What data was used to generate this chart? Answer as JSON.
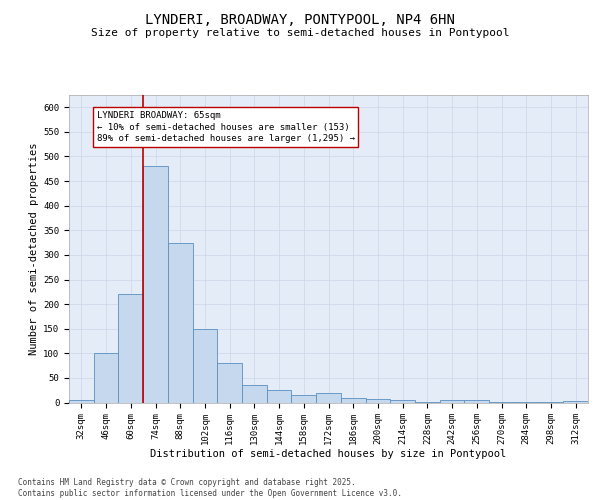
{
  "title_line1": "LYNDERI, BROADWAY, PONTYPOOL, NP4 6HN",
  "title_line2": "Size of property relative to semi-detached houses in Pontypool",
  "xlabel": "Distribution of semi-detached houses by size in Pontypool",
  "ylabel": "Number of semi-detached properties",
  "bins": [
    "32sqm",
    "46sqm",
    "60sqm",
    "74sqm",
    "88sqm",
    "102sqm",
    "116sqm",
    "130sqm",
    "144sqm",
    "158sqm",
    "172sqm",
    "186sqm",
    "200sqm",
    "214sqm",
    "228sqm",
    "242sqm",
    "256sqm",
    "270sqm",
    "284sqm",
    "298sqm",
    "312sqm"
  ],
  "bar_values": [
    5,
    100,
    220,
    480,
    325,
    150,
    80,
    35,
    25,
    15,
    20,
    10,
    8,
    5,
    2,
    5,
    5,
    2,
    2,
    2,
    3
  ],
  "bar_color": "#c5d8ed",
  "bar_edge_color": "#5a8fc0",
  "grid_color": "#ccd6e8",
  "background_color": "#e4ecf7",
  "vline_color": "#bb0000",
  "vline_x": 2.5,
  "annotation_text": "LYNDERI BROADWAY: 65sqm\n← 10% of semi-detached houses are smaller (153)\n89% of semi-detached houses are larger (1,295) →",
  "annotation_box_facecolor": "#ffffff",
  "annotation_box_edgecolor": "#bb0000",
  "ylim": [
    0,
    625
  ],
  "yticks": [
    0,
    50,
    100,
    150,
    200,
    250,
    300,
    350,
    400,
    450,
    500,
    550,
    600
  ],
  "footnote": "Contains HM Land Registry data © Crown copyright and database right 2025.\nContains public sector information licensed under the Open Government Licence v3.0.",
  "title_fontsize": 10,
  "subtitle_fontsize": 8,
  "axis_label_fontsize": 7.5,
  "tick_fontsize": 6.5,
  "annotation_fontsize": 6.5,
  "footnote_fontsize": 5.5
}
